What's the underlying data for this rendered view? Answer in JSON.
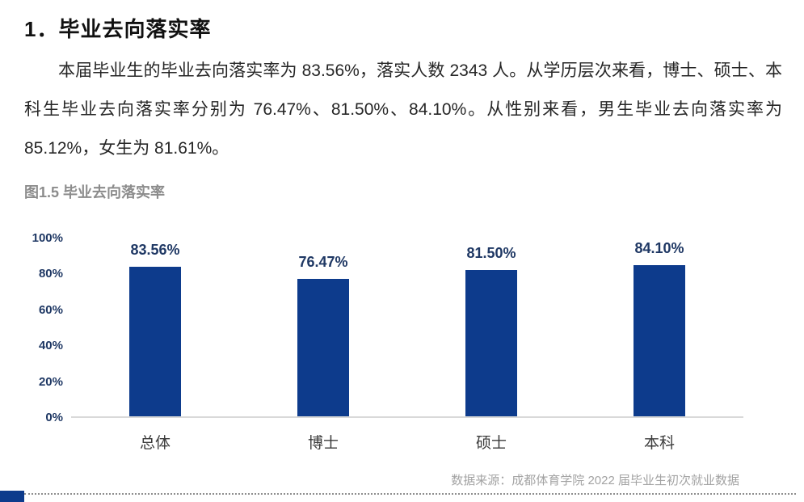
{
  "page": {
    "heading": "1．毕业去向落实率",
    "paragraph": "本届毕业生的毕业去向落实率为 83.56%，落实人数 2343 人。从学历层次来看，博士、硕士、本科生毕业去向落实率分别为 76.47%、81.50%、84.10%。从性别来看，男生毕业去向落实率为 85.12%，女生为 81.61%。",
    "caption": "图1.5 毕业去向落实率",
    "source_note": "数据来源：成都体育学院 2022 届毕业生初次就业数据"
  },
  "chart_data": {
    "type": "bar",
    "title": "图1.5 毕业去向落实率",
    "categories": [
      "总体",
      "博士",
      "硕士",
      "本科"
    ],
    "values": [
      83.56,
      76.47,
      81.5,
      84.1
    ],
    "value_labels": [
      "83.56%",
      "76.47%",
      "81.50%",
      "84.10%"
    ],
    "xlabel": "",
    "ylabel": "",
    "ylim": [
      0,
      100
    ],
    "yticks": [
      0,
      20,
      40,
      60,
      80,
      100
    ],
    "ytick_labels": [
      "0%",
      "20%",
      "40%",
      "60%",
      "80%",
      "100%"
    ],
    "grid": false,
    "legend": false
  },
  "colors": {
    "bar": "#0d3b8c",
    "axis_label": "#1f3864",
    "value_label": "#1f3864",
    "baseline": "#d9d9d9",
    "caption": "#8c8c8c",
    "source": "#a3a3a3",
    "accent": "#0d3b8c"
  }
}
